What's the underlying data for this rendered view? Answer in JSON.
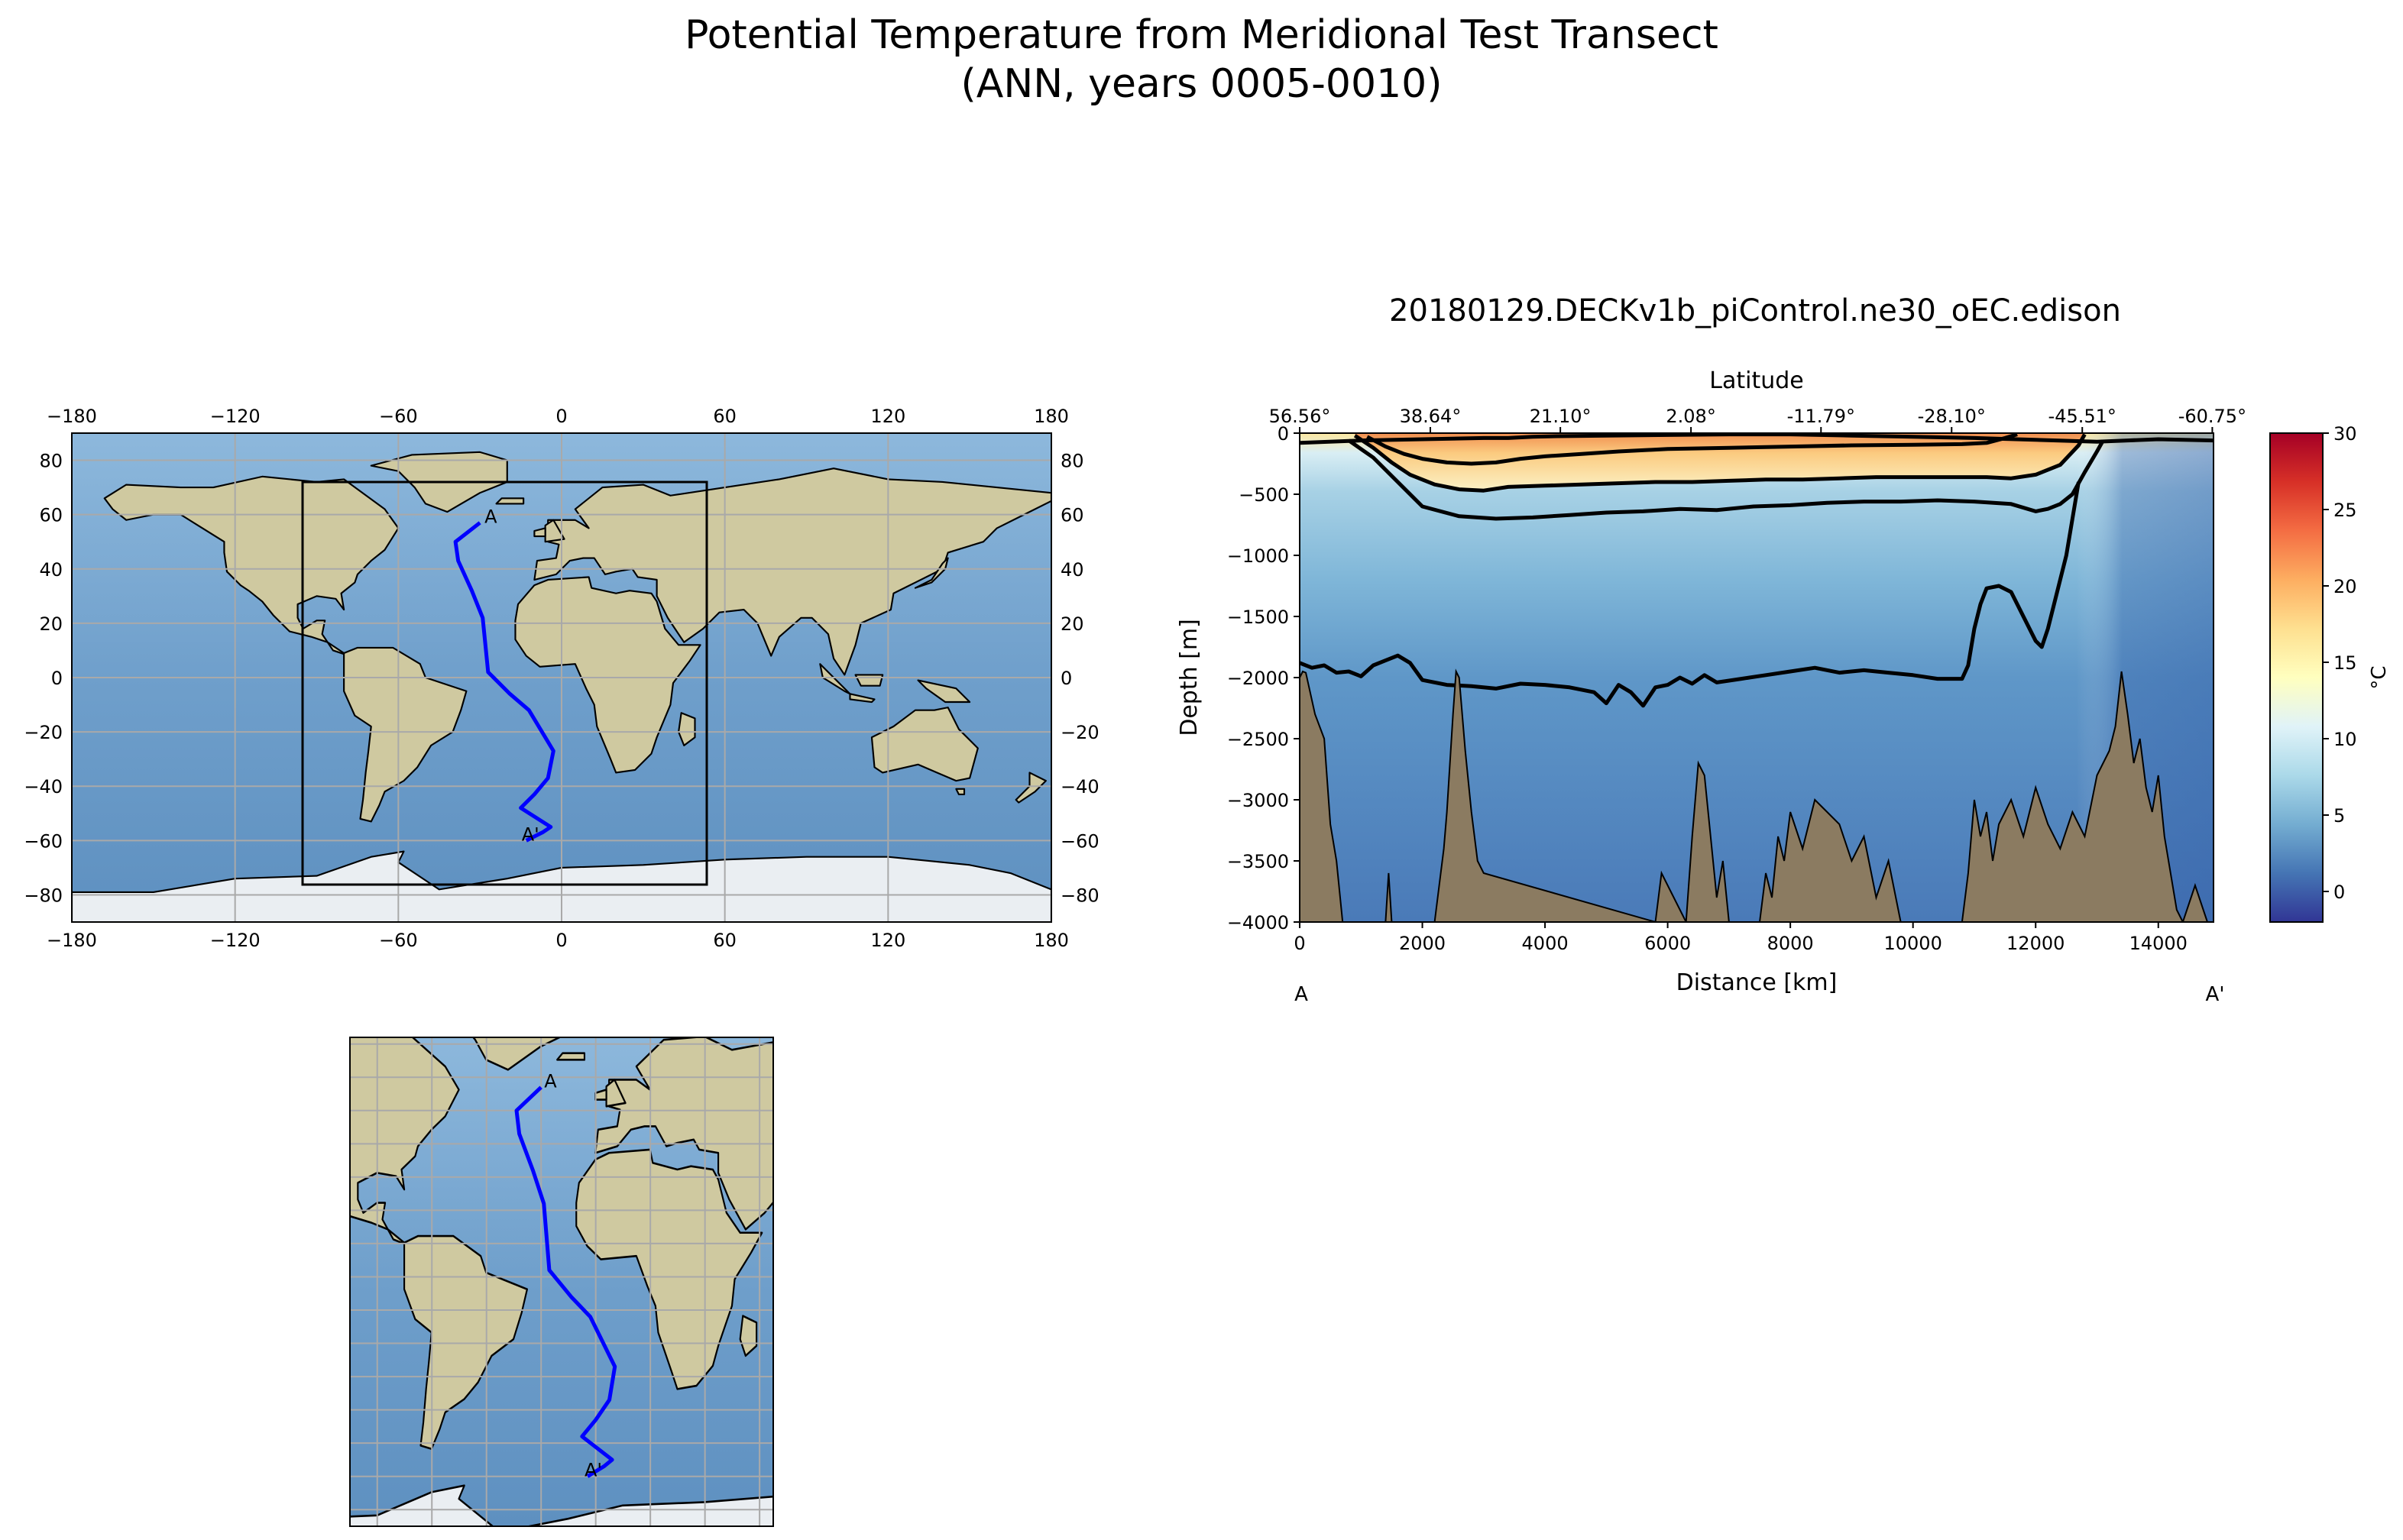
{
  "figure": {
    "title_line1": "Potential Temperature from Meridional Test Transect",
    "title_line2": "(ANN, years 0005-0010)"
  },
  "colors": {
    "ocean": "#7aa9d2",
    "land": "#c8c49a",
    "transect": "#0000ff",
    "bathymetry": "#8b7b61",
    "grid": "#a9a9a9"
  },
  "chart_data": [
    {
      "type": "map",
      "projection": "PlateCarree",
      "xlim": [
        -180,
        180
      ],
      "ylim": [
        -90,
        90
      ],
      "xticks": [
        "−180",
        "−120",
        "−60",
        "0",
        "60",
        "120",
        "180"
      ],
      "yticks": [
        "80",
        "60",
        "40",
        "20",
        "0",
        "−20",
        "−40",
        "−60",
        "−80"
      ],
      "grid": true,
      "region_box": {
        "lon": [
          -100,
          55
        ],
        "lat": [
          -75,
          72
        ]
      },
      "transect": {
        "start_label": "A",
        "end_label": "A'",
        "lon": [
          -30,
          -39,
          -38,
          -33,
          -29,
          -27,
          -19,
          -12,
          -3,
          -5,
          -10,
          -15,
          -4,
          -7,
          -13
        ],
        "lat": [
          57,
          50,
          43,
          32,
          22,
          2,
          -6,
          -12,
          -27,
          -37,
          -43,
          -48,
          -55,
          -57,
          -60
        ]
      }
    },
    {
      "type": "map",
      "projection": "PlateCarree (regional)",
      "xlim": [
        -100,
        55
      ],
      "ylim": [
        -75,
        72
      ],
      "grid": true,
      "transect": {
        "start_label": "A",
        "end_label": "A'"
      }
    },
    {
      "type": "heatmap",
      "title": "20180129.DECKv1b_piControl.ne30_oEC.edison",
      "xlabel": "Distance [km]",
      "ylabel": "Depth [m]",
      "top_xlabel": "Latitude",
      "xlim": [
        0,
        14900
      ],
      "ylim": [
        -4000,
        0
      ],
      "xticks": [
        0,
        2000,
        4000,
        6000,
        8000,
        10000,
        12000,
        14000
      ],
      "yticks": [
        0,
        -500,
        -1000,
        -1500,
        -2000,
        -2500,
        -3000,
        -3500,
        -4000
      ],
      "lat_ticks": [
        "56.56°",
        "38.64°",
        "21.10°",
        "2.08°",
        "-11.79°",
        "-28.10°",
        "-45.51°",
        "-60.75°"
      ],
      "lat_tick_distances": [
        0,
        2130,
        4250,
        6380,
        8500,
        10630,
        12760,
        14880
      ],
      "start_label": "A",
      "end_label": "A'",
      "colorbar": {
        "label": "°C",
        "vmin": -2,
        "vmax": 30,
        "ticks": [
          0,
          5,
          10,
          15,
          20,
          25,
          30
        ],
        "cmap": "RdYlBu_r"
      },
      "contours": [
        {
          "label": "deep",
          "x": [
            0,
            200,
            400,
            600,
            800,
            1000,
            1200,
            1400,
            1600,
            1800,
            2000,
            2400,
            2800,
            3200,
            3600,
            4000,
            4400,
            4800,
            5000,
            5200,
            5400,
            5600,
            5800,
            6000,
            6200,
            6400,
            6600,
            6800,
            7200,
            7600,
            8000,
            8400,
            8800,
            9200,
            9600,
            10000,
            10400,
            10800,
            10900,
            11000,
            11100,
            11200,
            11400,
            11600,
            11800,
            12000,
            12100,
            12200,
            12300,
            12400,
            12500,
            12600,
            12700
          ],
          "y": [
            -1880,
            -1920,
            -1900,
            -1960,
            -1950,
            -1990,
            -1900,
            -1860,
            -1820,
            -1880,
            -2020,
            -2060,
            -2070,
            -2090,
            -2050,
            -2060,
            -2080,
            -2120,
            -2210,
            -2060,
            -2120,
            -2230,
            -2080,
            -2060,
            -2000,
            -2050,
            -1980,
            -2040,
            -2010,
            -1980,
            -1950,
            -1920,
            -1960,
            -1940,
            -1960,
            -1980,
            -2010,
            -2010,
            -1900,
            -1600,
            -1400,
            -1270,
            -1250,
            -1300,
            -1500,
            -1700,
            -1750,
            -1600,
            -1400,
            -1200,
            -1000,
            -700,
            -400
          ]
        },
        {
          "label": "c500",
          "x": [
            800,
            1200,
            1600,
            2000,
            2600,
            3200,
            3800,
            4400,
            5000,
            5600,
            6200,
            6800,
            7400,
            8000,
            8600,
            9200,
            9800,
            10400,
            11000,
            11600,
            12000,
            12200,
            12400,
            12600,
            12800,
            13000,
            13100
          ],
          "y": [
            -60,
            -200,
            -400,
            -600,
            -680,
            -700,
            -690,
            -670,
            -650,
            -640,
            -620,
            -630,
            -600,
            -590,
            -570,
            -560,
            -560,
            -550,
            -560,
            -580,
            -640,
            -620,
            -580,
            -500,
            -320,
            -150,
            -60
          ]
        },
        {
          "label": "c250",
          "x": [
            900,
            1200,
            1500,
            1800,
            2200,
            2600,
            3000,
            3400,
            4000,
            4600,
            5200,
            5800,
            6400,
            7000,
            7600,
            8200,
            8800,
            9400,
            10000,
            10600,
            11200,
            11600,
            12000,
            12400,
            12700,
            12800
          ],
          "y": [
            -20,
            -120,
            -240,
            -340,
            -420,
            -460,
            -470,
            -440,
            -430,
            -420,
            -410,
            -400,
            -400,
            -390,
            -380,
            -380,
            -370,
            -360,
            -360,
            -360,
            -360,
            -370,
            -340,
            -260,
            -100,
            -10
          ]
        },
        {
          "label": "c120",
          "x": [
            1100,
            1400,
            1700,
            2000,
            2400,
            2800,
            3200,
            3600,
            4000,
            4600,
            5200,
            6000,
            7000,
            8000,
            9000,
            10000,
            10800,
            11200,
            11500,
            11700
          ],
          "y": [
            -30,
            -110,
            -170,
            -210,
            -240,
            -250,
            -240,
            -210,
            -190,
            -170,
            -150,
            -130,
            -120,
            -110,
            -100,
            -95,
            -90,
            -80,
            -40,
            -10
          ]
        },
        {
          "label": "surface",
          "x": [
            0,
            1000,
            2000,
            3000,
            3400,
            3800,
            4200,
            5000,
            6000,
            7000,
            8000,
            9000,
            10000,
            11000,
            12000,
            13000,
            13500,
            14000,
            14900
          ],
          "y": [
            -80,
            -60,
            -50,
            -40,
            -40,
            -30,
            -25,
            -20,
            -15,
            -10,
            -10,
            -20,
            -30,
            -40,
            -55,
            -70,
            -60,
            -50,
            -60
          ]
        }
      ],
      "bathymetry": {
        "x": [
          0,
          50,
          100,
          250,
          400,
          500,
          600,
          700,
          1400,
          1450,
          1500,
          2200,
          2300,
          2350,
          2400,
          2450,
          2500,
          2550,
          2600,
          2700,
          2800,
          2900,
          3000,
          5800,
          5900,
          6300,
          6400,
          6500,
          6600,
          6700,
          6800,
          6900,
          7000,
          7500,
          7600,
          7700,
          7800,
          7900,
          8000,
          8200,
          8400,
          8600,
          8800,
          9000,
          9200,
          9400,
          9600,
          9800,
          10800,
          10900,
          11000,
          11100,
          11200,
          11300,
          11400,
          11600,
          11800,
          12000,
          12200,
          12400,
          12600,
          12800,
          13000,
          13200,
          13300,
          13400,
          13500,
          13600,
          13700,
          13800,
          13900,
          14000,
          14100,
          14200,
          14300,
          14400,
          14600,
          14800,
          14900
        ],
        "depth": [
          -2000,
          -1950,
          -1960,
          -2300,
          -2500,
          -3200,
          -3500,
          -4000,
          -4000,
          -3600,
          -4000,
          -4000,
          -3600,
          -3400,
          -3100,
          -2700,
          -2300,
          -1950,
          -2000,
          -2600,
          -3100,
          -3500,
          -3600,
          -4000,
          -3600,
          -4000,
          -3300,
          -2700,
          -2800,
          -3300,
          -3800,
          -3500,
          -4000,
          -4000,
          -3600,
          -3800,
          -3300,
          -3500,
          -3100,
          -3400,
          -3000,
          -3100,
          -3200,
          -3500,
          -3300,
          -3800,
          -3500,
          -4000,
          -4000,
          -3600,
          -3000,
          -3300,
          -3100,
          -3500,
          -3200,
          -3000,
          -3300,
          -2900,
          -3200,
          -3400,
          -3100,
          -3300,
          -2800,
          -2600,
          -2400,
          -1950,
          -2300,
          -2700,
          -2500,
          -2900,
          -3100,
          -2800,
          -3300,
          -3600,
          -3900,
          -4000,
          -3700,
          -4000,
          -4000
        ]
      }
    }
  ]
}
